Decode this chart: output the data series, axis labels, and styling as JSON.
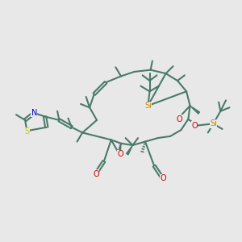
{
  "bg_color": "#e8e8e8",
  "bond_color": "#4a7a6a",
  "bond_width": 1.5,
  "atoms": {
    "S": {
      "color": "#cccc00"
    },
    "N": {
      "color": "#0000cc"
    },
    "O": {
      "color": "#cc0000"
    },
    "Si": {
      "color": "#cc8800"
    }
  },
  "fig_width": 3.0,
  "fig_height": 3.0,
  "dpi": 100
}
